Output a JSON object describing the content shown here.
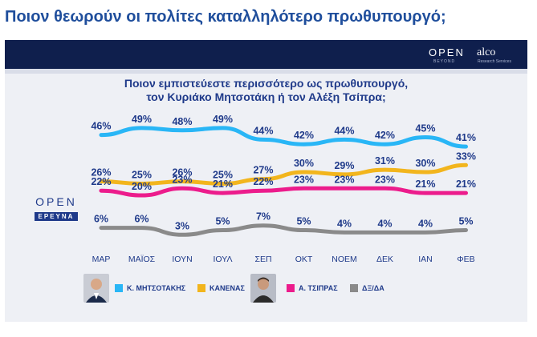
{
  "page": {
    "title": "Ποιον θεωρούν οι πολίτες καταλληλότερο πρωθυπουργό;"
  },
  "branding": {
    "top_logo": "OPEN",
    "top_logo_sub": "BEYOND",
    "partner": "alco",
    "partner_sub": "Research Services",
    "side_logo": "OPEN",
    "side_logo_badge": "ΕΡΕΥΝΑ"
  },
  "chart_data": {
    "type": "line",
    "title": "Ποιον εμπιστεύεστε περισσότερο ως πρωθυπουργό,",
    "subtitle": "τον Κυριάκο Μητσοτάκη ή τον Αλέξη Τσίπρα;",
    "categories": [
      "ΜΑΡ",
      "ΜΑΪΟΣ",
      "ΙΟΥΝ",
      "ΙΟΥΛ",
      "ΣΕΠ",
      "ΟΚΤ",
      "ΝΟΕΜ",
      "ΔΕΚ",
      "ΙΑΝ",
      "ΦΕΒ"
    ],
    "series": [
      {
        "name": "Κ. ΜΗΤΣΟΤΑΚΗΣ",
        "color": "#29b6f6",
        "values": [
          46,
          49,
          48,
          49,
          44,
          42,
          44,
          42,
          45,
          41
        ],
        "labels": [
          "46%",
          "49%",
          "48%",
          "49%",
          "44%",
          "42%",
          "44%",
          "42%",
          "45%",
          "41%"
        ]
      },
      {
        "name": "ΚΑΝΕΝΑΣ",
        "color": "#f2b51d",
        "values": [
          26,
          25,
          26,
          25,
          27,
          30,
          29,
          31,
          30,
          33
        ],
        "labels": [
          "26%",
          "25%",
          "26%",
          "25%",
          "27%",
          "30%",
          "29%",
          "31%",
          "30%",
          "33%"
        ]
      },
      {
        "name": "Α. ΤΣΙΠΡΑΣ",
        "color": "#ec1c8c",
        "values": [
          22,
          20,
          23,
          21,
          22,
          23,
          23,
          23,
          21,
          21
        ],
        "labels": [
          "22%",
          "20%",
          "23%",
          "21%",
          "22%",
          "23%",
          "23%",
          "23%",
          "21%",
          "21%"
        ]
      },
      {
        "name": "ΔΞ/ΔΑ",
        "color": "#8a8a8a",
        "values": [
          6,
          6,
          3,
          5,
          7,
          5,
          4,
          4,
          4,
          5
        ],
        "labels": [
          "6%",
          "6%",
          "3%",
          "5%",
          "7%",
          "5%",
          "4%",
          "4%",
          "4%",
          "5%"
        ]
      }
    ],
    "legend_position": "bottom",
    "grid": false
  }
}
